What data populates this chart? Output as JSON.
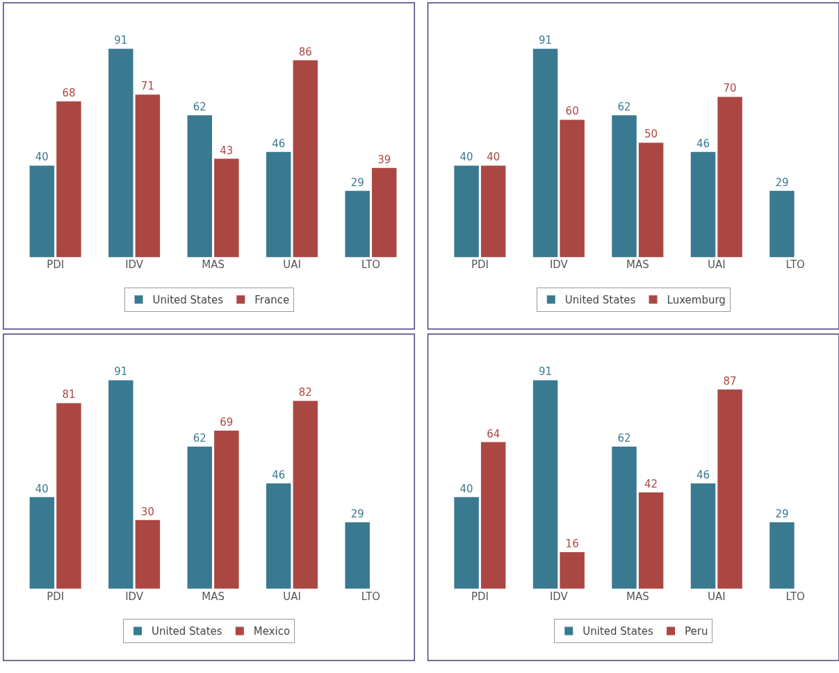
{
  "chart_data": [
    {
      "type": "bar",
      "categories": [
        "PDI",
        "IDV",
        "MAS",
        "UAI",
        "LTO"
      ],
      "data_labels": true,
      "legend": "bottom",
      "tick_labels": "x",
      "series": [
        {
          "name": "United States",
          "color": "#3a7a91",
          "values": [
            40,
            91,
            62,
            46,
            29
          ]
        },
        {
          "name": "France",
          "color": "#ab4743",
          "values": [
            68,
            71,
            43,
            86,
            39
          ]
        }
      ]
    },
    {
      "type": "bar",
      "categories": [
        "PDI",
        "IDV",
        "MAS",
        "UAI",
        "LTO"
      ],
      "data_labels": true,
      "legend": "bottom",
      "tick_labels": "x",
      "series": [
        {
          "name": "United States",
          "color": "#3a7a91",
          "values": [
            40,
            91,
            62,
            46,
            29
          ]
        },
        {
          "name": "Luxemburg",
          "color": "#ab4743",
          "values": [
            40,
            60,
            50,
            70,
            null
          ]
        }
      ]
    },
    {
      "type": "bar",
      "categories": [
        "PDI",
        "IDV",
        "MAS",
        "UAI",
        "LTO"
      ],
      "data_labels": true,
      "legend": "bottom",
      "tick_labels": "x",
      "series": [
        {
          "name": "United States",
          "color": "#3a7a91",
          "values": [
            40,
            91,
            62,
            46,
            29
          ]
        },
        {
          "name": "Mexico",
          "color": "#ab4743",
          "values": [
            81,
            30,
            69,
            82,
            null
          ]
        }
      ]
    },
    {
      "type": "bar",
      "categories": [
        "PDI",
        "IDV",
        "MAS",
        "UAI",
        "LTO"
      ],
      "data_labels": true,
      "legend": "bottom",
      "tick_labels": "x",
      "series": [
        {
          "name": "United States",
          "color": "#3a7a91",
          "values": [
            40,
            91,
            62,
            46,
            29
          ]
        },
        {
          "name": "Peru",
          "color": "#ab4743",
          "values": [
            64,
            16,
            42,
            87,
            null
          ]
        }
      ]
    }
  ]
}
